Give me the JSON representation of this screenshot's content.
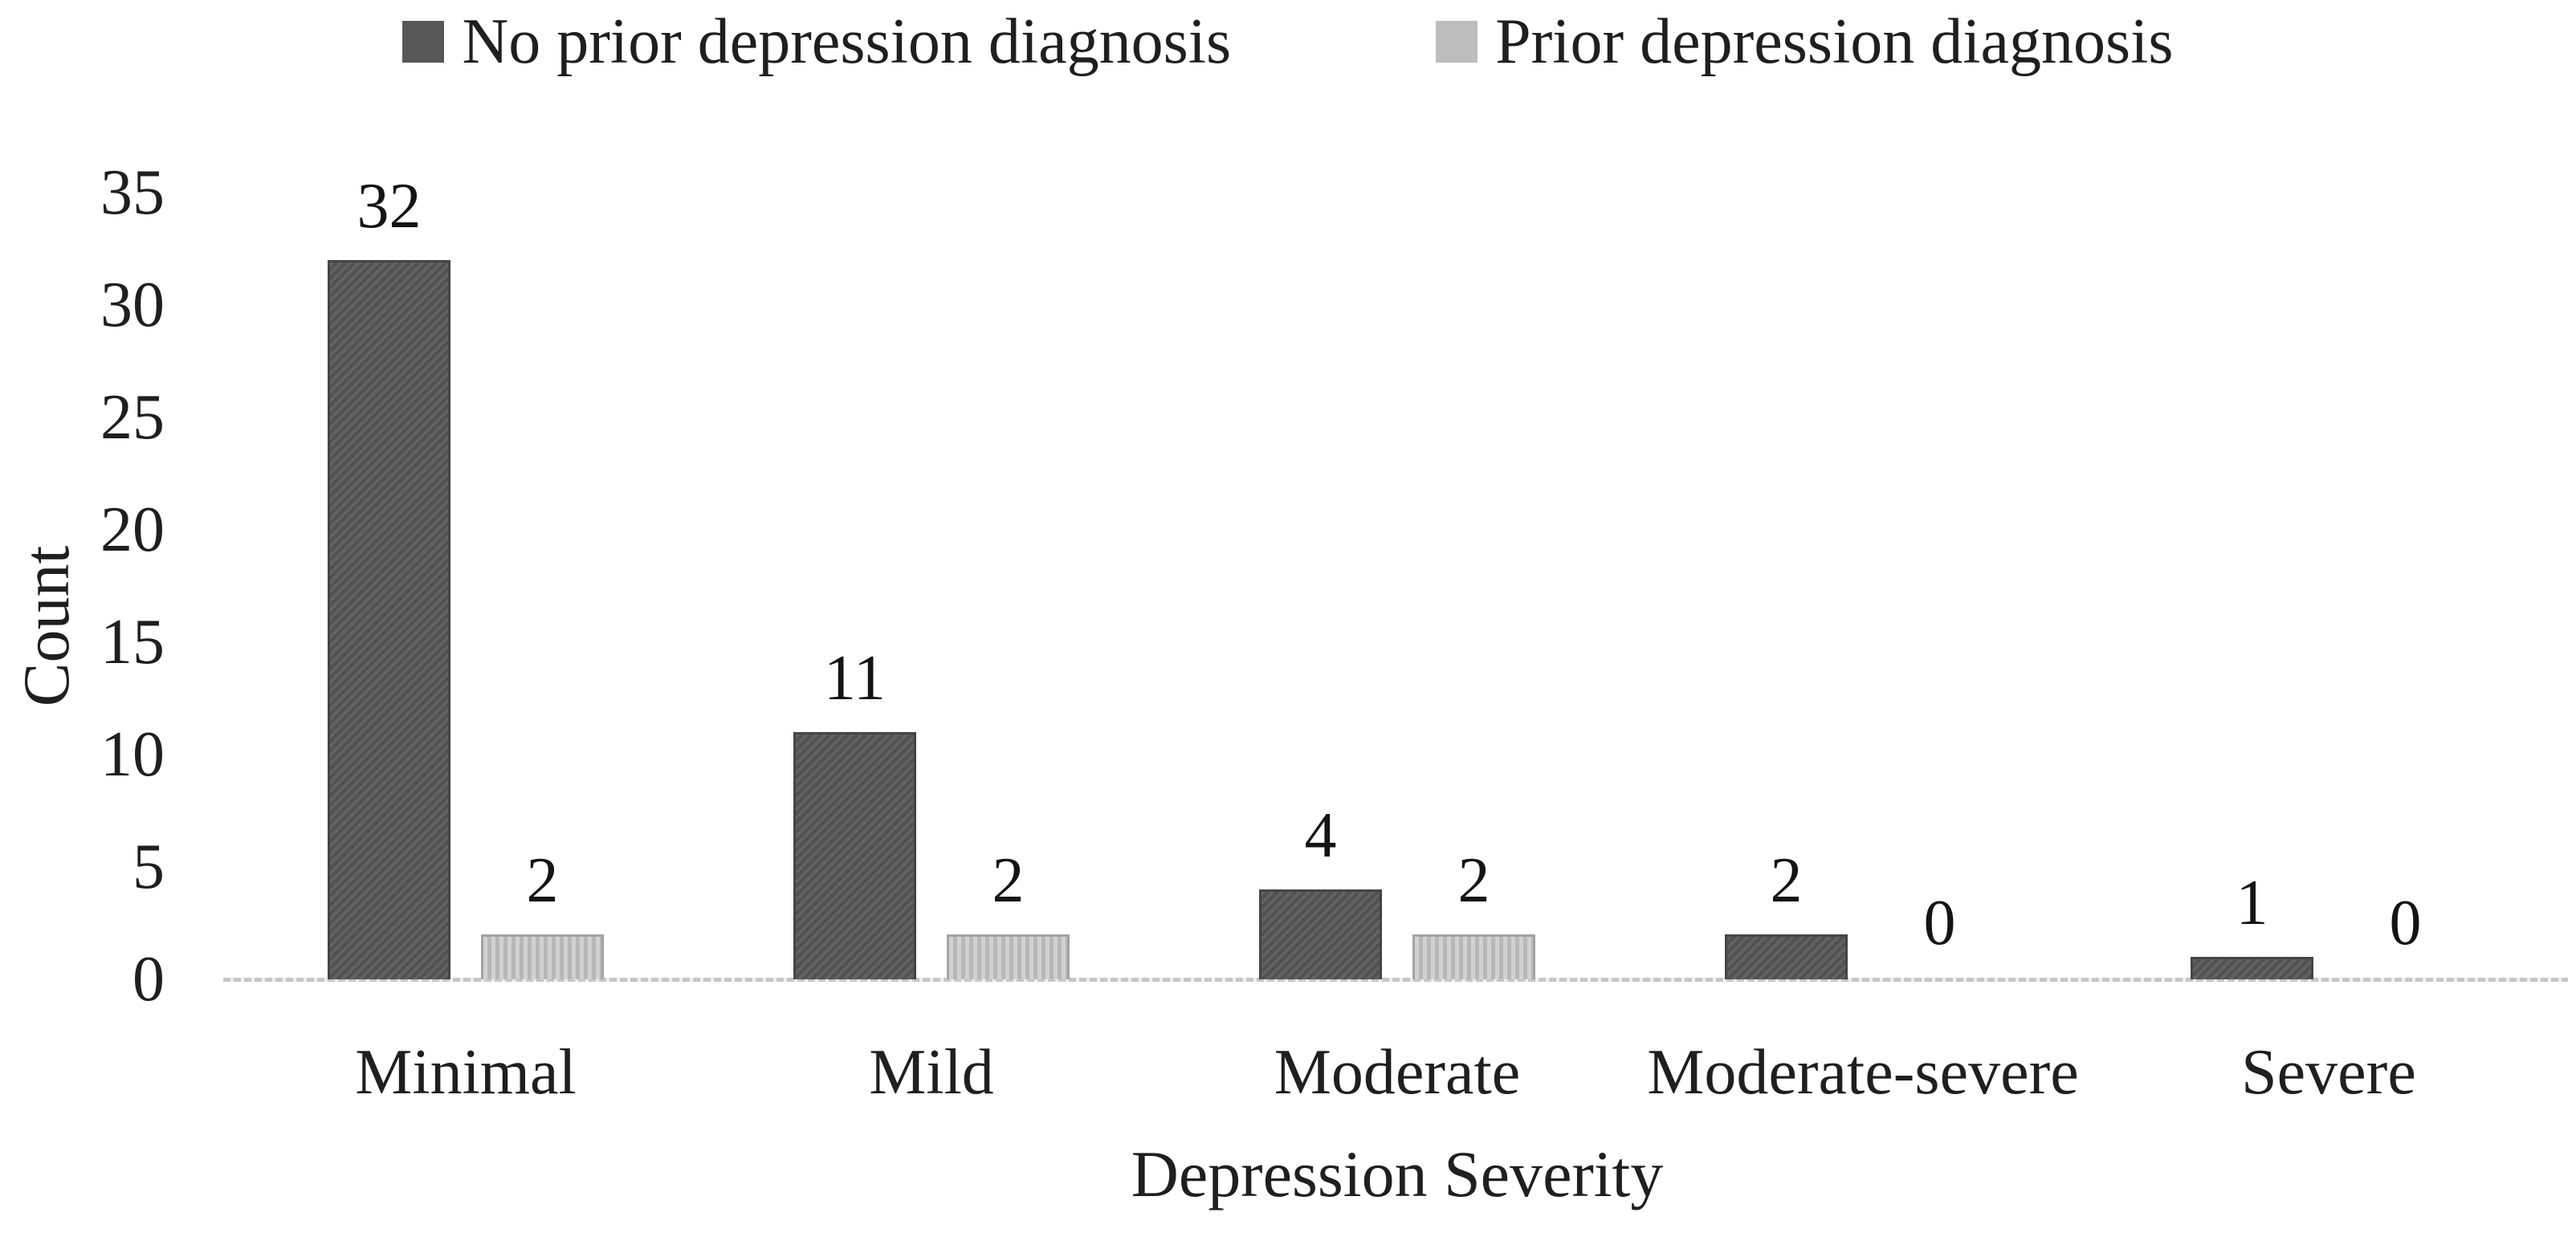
{
  "chart_data": {
    "type": "bar",
    "title": "",
    "xlabel": "Depression Severity",
    "ylabel": "Count",
    "categories": [
      "Minimal",
      "Mild",
      "Moderate",
      "Moderate-severe",
      "Severe"
    ],
    "series": [
      {
        "name": "No prior depression diagnosis",
        "color": "#575757",
        "values": [
          32,
          11,
          4,
          2,
          1
        ]
      },
      {
        "name": "Prior depression diagnosis",
        "color": "#bdbdbd",
        "values": [
          2,
          2,
          2,
          0,
          0
        ]
      }
    ],
    "ylim": [
      0,
      35
    ],
    "yticks": [
      0,
      5,
      10,
      15,
      20,
      25,
      30,
      35
    ],
    "grid": false,
    "legend_position": "top",
    "data_labels": true,
    "colors": {
      "text": "#1f1f1f",
      "axis_line": "#c6c6c6",
      "background": "#ffffff"
    }
  }
}
